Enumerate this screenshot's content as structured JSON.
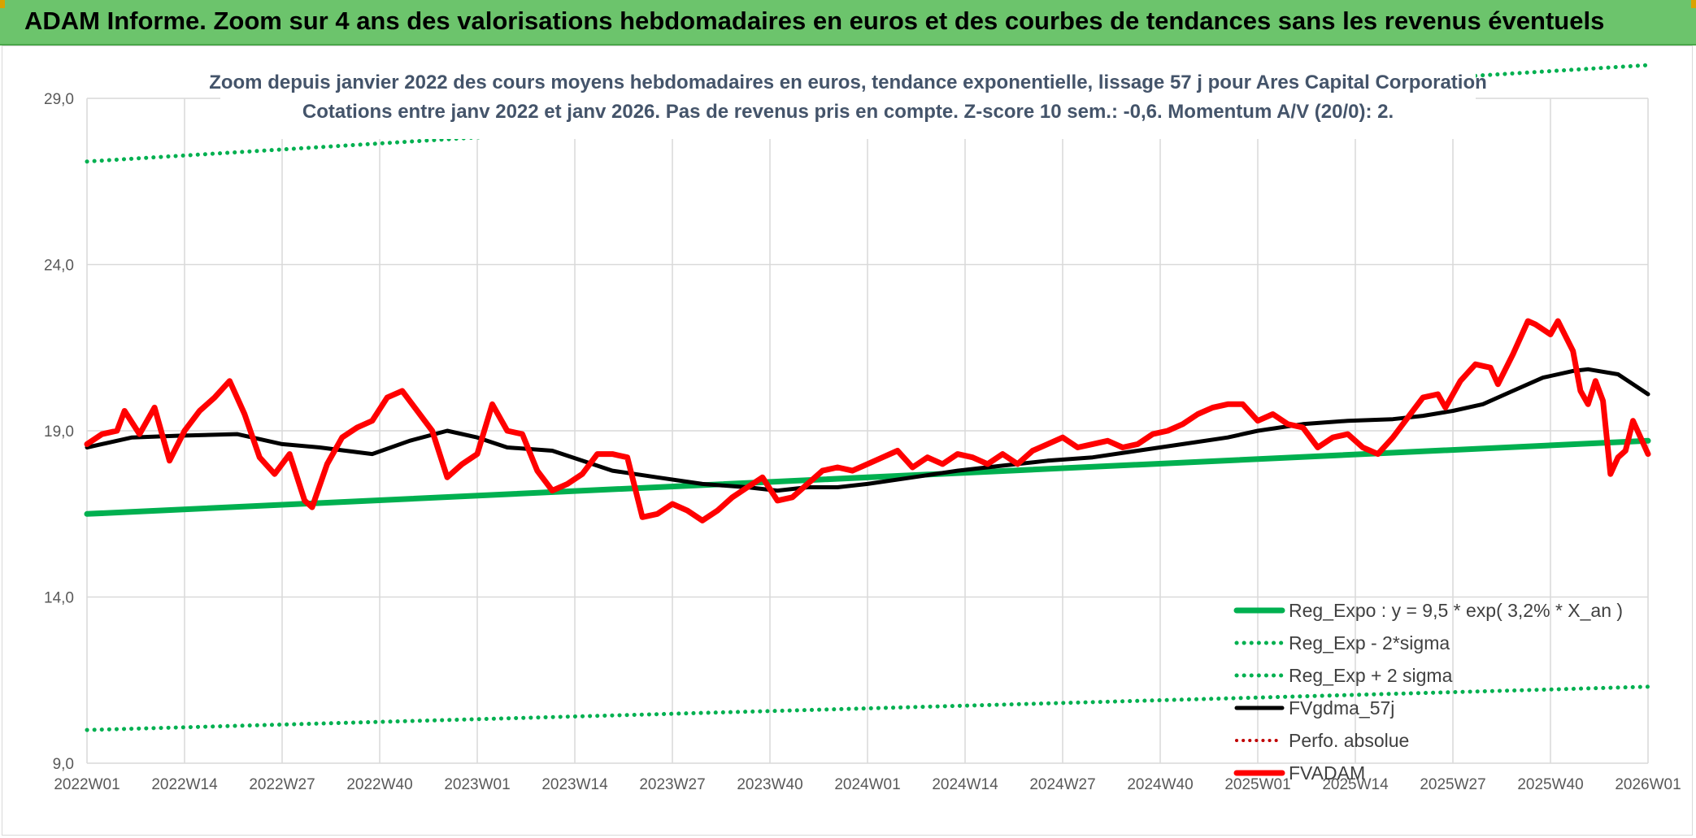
{
  "banner": {
    "title": "ADAM Informe. Zoom sur 4 ans des valorisations hebdomadaires en euros et des courbes de tendances sans les revenus éventuels"
  },
  "colors": {
    "banner_bg": "#6cc46c",
    "green": "#00b050",
    "red": "#ff0000",
    "black": "#000000",
    "dotted_red": "#c00000",
    "grid": "#d9d9d9",
    "text": "#44546a"
  },
  "chart_data": {
    "type": "line",
    "title": "Zoom depuis janvier 2022 des cours moyens hebdomadaires en euros, tendance exponentielle, lissage 57 j pour Ares Capital Corporation",
    "subtitle": "Cotations entre janv 2022 et janv 2026. Pas de revenus pris en compte. Z-score 10 sem.: -0,6. Momentum A/V (20/0): 2.",
    "ylim": [
      9.0,
      29.0
    ],
    "yticks": [
      9.0,
      14.0,
      19.0,
      24.0,
      29.0
    ],
    "ytick_labels": [
      "9,0",
      "14,0",
      "19,0",
      "24,0",
      "29,0"
    ],
    "xticks": [
      "2022W01",
      "2022W14",
      "2022W27",
      "2022W40",
      "2023W01",
      "2023W14",
      "2023W27",
      "2023W40",
      "2024W01",
      "2024W14",
      "2024W27",
      "2024W40",
      "2025W01",
      "2025W14",
      "2025W27",
      "2025W40",
      "2026W01"
    ],
    "x_weeks": [
      0,
      208
    ],
    "legend_position": "bottom-right",
    "series": [
      {
        "name": "Reg_Expo : y = 9,5 * exp( 3,2% *  X_an )",
        "style": "solid-green",
        "points": [
          [
            0,
            16.5
          ],
          [
            208,
            18.7
          ]
        ]
      },
      {
        "name": "Reg_Exp - 2*sigma",
        "style": "dotted-green",
        "points": [
          [
            0,
            10.0
          ],
          [
            208,
            11.3
          ]
        ]
      },
      {
        "name": "Reg_Exp + 2 sigma",
        "style": "dotted-green",
        "points": [
          [
            0,
            27.1
          ],
          [
            208,
            30.0
          ]
        ]
      },
      {
        "name": "FVgdma_57j",
        "style": "solid-black",
        "points": [
          [
            0,
            18.5
          ],
          [
            6,
            18.8
          ],
          [
            12,
            18.85
          ],
          [
            20,
            18.9
          ],
          [
            26,
            18.6
          ],
          [
            31,
            18.5
          ],
          [
            38,
            18.3
          ],
          [
            43,
            18.7
          ],
          [
            48,
            19.0
          ],
          [
            52,
            18.8
          ],
          [
            56,
            18.5
          ],
          [
            62,
            18.4
          ],
          [
            66,
            18.1
          ],
          [
            70,
            17.8
          ],
          [
            76,
            17.6
          ],
          [
            82,
            17.4
          ],
          [
            88,
            17.3
          ],
          [
            92,
            17.2
          ],
          [
            96,
            17.3
          ],
          [
            100,
            17.3
          ],
          [
            104,
            17.4
          ],
          [
            110,
            17.6
          ],
          [
            116,
            17.8
          ],
          [
            122,
            17.95
          ],
          [
            128,
            18.1
          ],
          [
            134,
            18.2
          ],
          [
            140,
            18.4
          ],
          [
            146,
            18.6
          ],
          [
            152,
            18.8
          ],
          [
            156,
            19.0
          ],
          [
            162,
            19.2
          ],
          [
            168,
            19.3
          ],
          [
            174,
            19.35
          ],
          [
            178,
            19.45
          ],
          [
            182,
            19.6
          ],
          [
            186,
            19.8
          ],
          [
            190,
            20.2
          ],
          [
            194,
            20.6
          ],
          [
            198,
            20.8
          ],
          [
            200,
            20.85
          ],
          [
            204,
            20.7
          ],
          [
            206,
            20.4
          ],
          [
            208,
            20.1
          ]
        ]
      },
      {
        "name": "Perfo. absolue",
        "style": "dotted-red",
        "points": []
      },
      {
        "name": "FVADAM",
        "style": "solid-red",
        "points": [
          [
            0,
            18.6
          ],
          [
            2,
            18.9
          ],
          [
            4,
            19.0
          ],
          [
            5,
            19.6
          ],
          [
            7,
            18.9
          ],
          [
            9,
            19.7
          ],
          [
            11,
            18.1
          ],
          [
            13,
            19.0
          ],
          [
            15,
            19.6
          ],
          [
            17,
            20.0
          ],
          [
            19,
            20.5
          ],
          [
            21,
            19.5
          ],
          [
            23,
            18.2
          ],
          [
            25,
            17.7
          ],
          [
            27,
            18.3
          ],
          [
            29,
            16.9
          ],
          [
            30,
            16.7
          ],
          [
            32,
            18.0
          ],
          [
            34,
            18.8
          ],
          [
            36,
            19.1
          ],
          [
            38,
            19.3
          ],
          [
            40,
            20.0
          ],
          [
            42,
            20.2
          ],
          [
            44,
            19.6
          ],
          [
            46,
            19.0
          ],
          [
            48,
            17.6
          ],
          [
            50,
            18.0
          ],
          [
            52,
            18.3
          ],
          [
            54,
            19.8
          ],
          [
            56,
            19.0
          ],
          [
            58,
            18.9
          ],
          [
            60,
            17.8
          ],
          [
            62,
            17.2
          ],
          [
            64,
            17.4
          ],
          [
            66,
            17.7
          ],
          [
            68,
            18.3
          ],
          [
            70,
            18.3
          ],
          [
            72,
            18.2
          ],
          [
            74,
            16.4
          ],
          [
            76,
            16.5
          ],
          [
            78,
            16.8
          ],
          [
            80,
            16.6
          ],
          [
            82,
            16.3
          ],
          [
            84,
            16.6
          ],
          [
            86,
            17.0
          ],
          [
            88,
            17.3
          ],
          [
            90,
            17.6
          ],
          [
            92,
            16.9
          ],
          [
            94,
            17.0
          ],
          [
            96,
            17.4
          ],
          [
            98,
            17.8
          ],
          [
            100,
            17.9
          ],
          [
            102,
            17.8
          ],
          [
            104,
            18.0
          ],
          [
            106,
            18.2
          ],
          [
            108,
            18.4
          ],
          [
            110,
            17.9
          ],
          [
            112,
            18.2
          ],
          [
            114,
            18.0
          ],
          [
            116,
            18.3
          ],
          [
            118,
            18.2
          ],
          [
            120,
            18.0
          ],
          [
            122,
            18.3
          ],
          [
            124,
            18.0
          ],
          [
            126,
            18.4
          ],
          [
            128,
            18.6
          ],
          [
            130,
            18.8
          ],
          [
            132,
            18.5
          ],
          [
            134,
            18.6
          ],
          [
            136,
            18.7
          ],
          [
            138,
            18.5
          ],
          [
            140,
            18.6
          ],
          [
            142,
            18.9
          ],
          [
            144,
            19.0
          ],
          [
            146,
            19.2
          ],
          [
            148,
            19.5
          ],
          [
            150,
            19.7
          ],
          [
            152,
            19.8
          ],
          [
            154,
            19.8
          ],
          [
            156,
            19.3
          ],
          [
            158,
            19.5
          ],
          [
            160,
            19.2
          ],
          [
            162,
            19.1
          ],
          [
            164,
            18.5
          ],
          [
            166,
            18.8
          ],
          [
            168,
            18.9
          ],
          [
            170,
            18.5
          ],
          [
            172,
            18.3
          ],
          [
            174,
            18.8
          ],
          [
            176,
            19.4
          ],
          [
            178,
            20.0
          ],
          [
            180,
            20.1
          ],
          [
            181,
            19.7
          ],
          [
            183,
            20.5
          ],
          [
            185,
            21.0
          ],
          [
            187,
            20.9
          ],
          [
            188,
            20.4
          ],
          [
            190,
            21.3
          ],
          [
            192,
            22.3
          ],
          [
            193,
            22.2
          ],
          [
            195,
            21.9
          ],
          [
            196,
            22.3
          ],
          [
            198,
            21.4
          ],
          [
            199,
            20.2
          ],
          [
            200,
            19.8
          ],
          [
            201,
            20.5
          ],
          [
            202,
            19.9
          ],
          [
            203,
            17.7
          ],
          [
            204,
            18.2
          ],
          [
            205,
            18.4
          ],
          [
            206,
            19.3
          ],
          [
            207,
            18.8
          ],
          [
            208,
            18.3
          ]
        ]
      }
    ]
  }
}
